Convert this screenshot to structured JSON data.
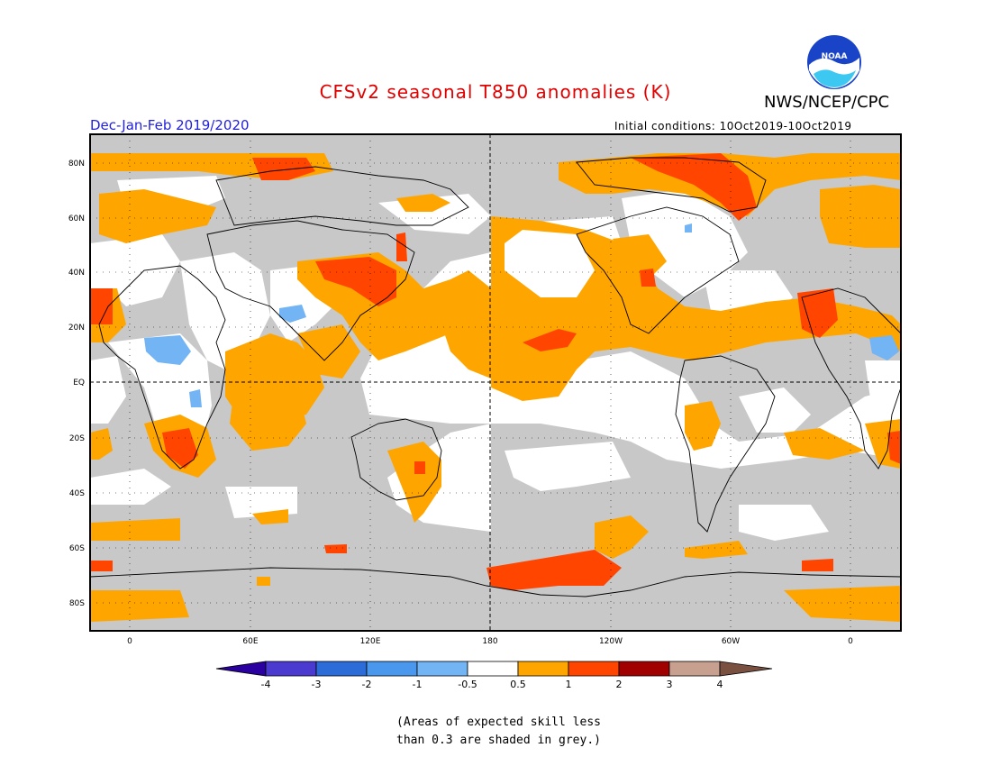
{
  "header": {
    "title": "CFSv2 seasonal T850 anomalies (K)",
    "org": "NWS/NCEP/CPC",
    "season": "Dec-Jan-Feb 2019/2020",
    "initial_conditions": "Initial conditions: 10Oct2019-10Oct2019",
    "logo_text": "NOAA"
  },
  "map": {
    "lat_labels": [
      "80N",
      "60N",
      "40N",
      "20N",
      "EQ",
      "20S",
      "40S",
      "60S",
      "80S"
    ],
    "lon_labels": [
      "0",
      "60E",
      "120E",
      "180",
      "120W",
      "60W",
      "0"
    ],
    "colors": {
      "grey": "#c8c8c8",
      "orange": "#ffa500",
      "red": "#ff4500",
      "lightblue": "#73b4f5"
    }
  },
  "colorbar": {
    "labels": [
      "-4",
      "-3",
      "-2",
      "-1",
      "-0.5",
      "0.5",
      "1",
      "2",
      "3",
      "4"
    ],
    "colors": [
      "#2a00a0",
      "#4a3ad0",
      "#2c6cd8",
      "#4a98ee",
      "#73b4f5",
      "#ffffff",
      "#ffa500",
      "#ff4500",
      "#a00000",
      "#c8a090",
      "#7a5040"
    ]
  },
  "note": {
    "line1": "(Areas of expected skill less",
    "line2": "than 0.3 are shaded in grey.)"
  }
}
